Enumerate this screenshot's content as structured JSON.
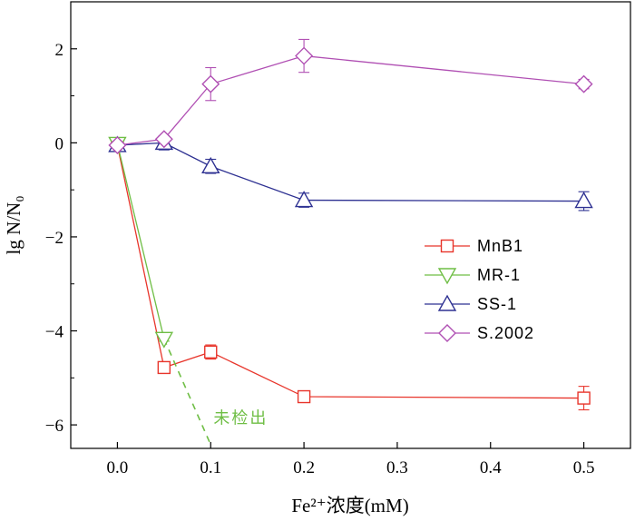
{
  "chart_data": {
    "type": "line",
    "xlabel": "Fe²⁺浓度(mM)",
    "ylabel": "lg N/N₀",
    "xlim": [
      -0.05,
      0.55
    ],
    "ylim": [
      -6.5,
      3.0
    ],
    "xticks": [
      0.0,
      0.1,
      0.2,
      0.3,
      0.4,
      0.5
    ],
    "xtick_labels": [
      "0.0",
      "0.1",
      "0.2",
      "0.3",
      "0.4",
      "0.5"
    ],
    "yticks": [
      -6,
      -4,
      -2,
      0,
      2
    ],
    "ytick_labels": [
      "−6",
      "−4",
      "−2",
      "0",
      "2"
    ],
    "grid": false,
    "legend_position": "right-center",
    "series": [
      {
        "name": "MnB1",
        "color": "#e8352b",
        "marker": "square",
        "x": [
          0.0,
          0.05,
          0.1,
          0.2,
          0.5
        ],
        "y": [
          -0.05,
          -4.78,
          -4.45,
          -5.4,
          -5.43
        ],
        "err": [
          0.05,
          0.05,
          0.15,
          0.1,
          0.25
        ]
      },
      {
        "name": "MR-1",
        "color": "#6fbe45",
        "marker": "triangle-down",
        "x": [
          0.0,
          0.05
        ],
        "y": [
          -0.02,
          -4.17
        ],
        "err": [
          0.03,
          0.05
        ],
        "dashed_extension": {
          "x": [
            0.05,
            0.1
          ],
          "y": [
            -4.17,
            -6.42
          ]
        }
      },
      {
        "name": "SS-1",
        "color": "#2e3192",
        "marker": "triangle-up",
        "x": [
          0.0,
          0.05,
          0.1,
          0.2,
          0.5
        ],
        "y": [
          -0.05,
          0.0,
          -0.5,
          -1.22,
          -1.24
        ],
        "err": [
          0.03,
          0.15,
          0.15,
          0.15,
          0.2
        ]
      },
      {
        "name": "S.2002",
        "color": "#b04fb3",
        "marker": "diamond",
        "x": [
          0.0,
          0.05,
          0.1,
          0.2,
          0.5
        ],
        "y": [
          -0.05,
          0.08,
          1.25,
          1.85,
          1.25
        ],
        "err": [
          0.03,
          0.05,
          0.35,
          0.35,
          0.1
        ]
      }
    ],
    "annotations": [
      {
        "text": "未检出",
        "x": 0.103,
        "y": -5.97,
        "color": "#6fbe45"
      }
    ]
  }
}
